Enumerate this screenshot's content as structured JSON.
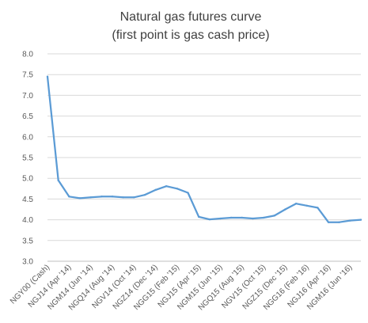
{
  "chart_data": {
    "type": "line",
    "title": [
      "Natural gas futures curve",
      "(first point is gas cash price)"
    ],
    "xlabel": "",
    "ylabel": "",
    "ylim": [
      3.0,
      8.0
    ],
    "yticks": [
      "3.0",
      "3.5",
      "4.0",
      "4.5",
      "5.0",
      "5.5",
      "6.0",
      "6.5",
      "7.0",
      "7.5",
      "8.0"
    ],
    "grid": true,
    "legend": "none",
    "color": "#5b9bd5",
    "x_tick_labels": [
      "NGY00 (Cash)",
      "NGJ14 (Apr '14)",
      "NGM14 (Jun '14)",
      "NGQ14 (Aug '14)",
      "NGV14 (Oct '14)",
      "NGZ14 (Dec '14)",
      "NGG15 (Feb '15)",
      "NGJ15 (Apr '15)",
      "NGM15 (Jun '15)",
      "NGQ15 (Aug '15)",
      "NGV15 (Oct '15)",
      "NGZ15 (Dec '15)",
      "NGG16 (Feb '16)",
      "NGJ16 (Apr '16)",
      "NGM16 (Jun '16)"
    ],
    "series": [
      {
        "values": [
          7.45,
          4.95,
          4.56,
          4.52,
          4.54,
          4.56,
          4.56,
          4.54,
          4.54,
          4.6,
          4.72,
          4.81,
          4.75,
          4.65,
          4.07,
          4.01,
          4.03,
          4.05,
          4.05,
          4.03,
          4.05,
          4.1,
          4.25,
          4.39,
          4.34,
          4.29,
          3.94,
          3.94,
          3.98,
          4.0
        ]
      }
    ]
  }
}
